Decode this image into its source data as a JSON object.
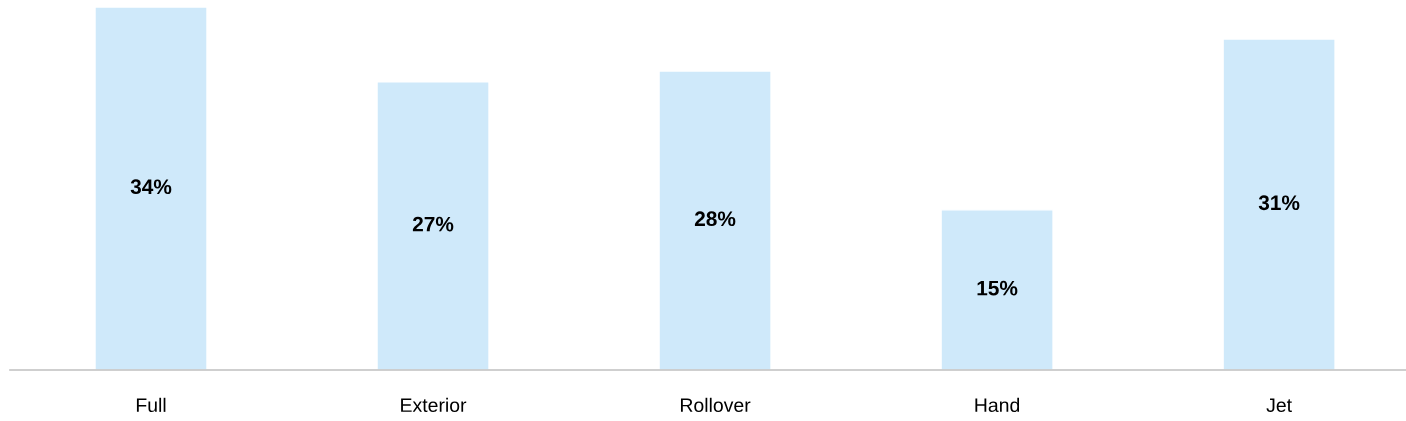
{
  "chart_data": {
    "type": "bar",
    "categories": [
      "Full",
      "Exterior",
      "Rollover",
      "Hand",
      "Jet"
    ],
    "values": [
      34,
      27,
      28,
      15,
      31
    ],
    "value_labels": [
      "34%",
      "27%",
      "28%",
      "15%",
      "31%"
    ],
    "color": "#cfe9fa",
    "grid": false,
    "legend": false
  }
}
